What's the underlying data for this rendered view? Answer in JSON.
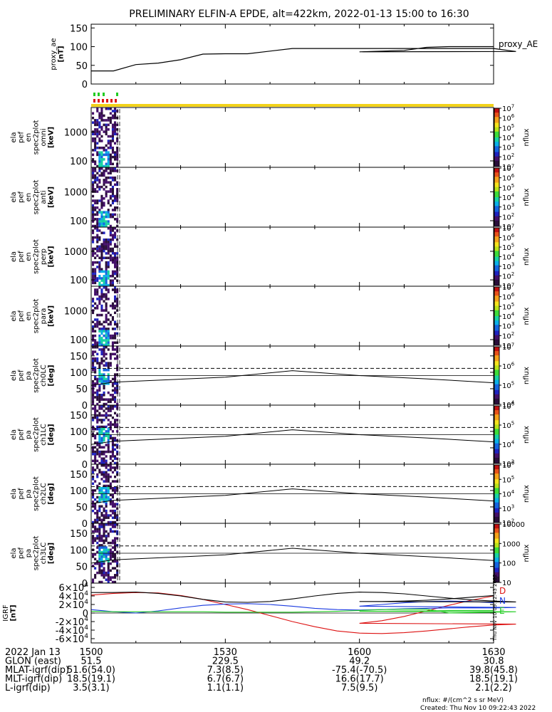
{
  "title": "PRELIMINARY ELFIN-A EPDE, alt=422km, 2022-01-13 15:00 to 16:30",
  "footer": {
    "units": "nflux: #/(cm^2 s sr MeV)",
    "created": "Created: Thu Nov 10 09:22:43 2022",
    "side_stamp": "Thu Nov 10 09:22:43 2022"
  },
  "colors": {
    "axis": "#000000",
    "bar_yellow": "#f2d21a",
    "marker_green": "#22cc22",
    "marker_red": "#dd1111",
    "grf_d": "#dd1111",
    "grf_n": "#1a3ae0",
    "grf_e": "#22cc22",
    "grf_total": "#000000"
  },
  "colormap": [
    "#ffffff",
    "#2b0f3b",
    "#45106a",
    "#1f23c0",
    "#1565e0",
    "#0ab0e6",
    "#17d3a2",
    "#3ddc3a",
    "#b8e31a",
    "#f5e31c",
    "#f5a21a",
    "#e8531a",
    "#c21010"
  ],
  "chart_data": [
    {
      "type": "line",
      "panel": "proxy_ae",
      "ylabel": [
        "proxy_ae",
        "[nT]"
      ],
      "legend": "proxy_AE",
      "ylim": [
        0,
        160
      ],
      "yticks": [
        "0",
        "50",
        "100",
        "150"
      ],
      "x": [
        1500,
        1505,
        1510,
        1515,
        1520,
        1525,
        1530,
        1535,
        1540,
        1545,
        1550,
        1555,
        1560,
        1565,
        1570,
        1575,
        1580,
        1585,
        1590,
        1595,
        1600,
        1605,
        1610,
        1615,
        1620,
        1625,
        1630
      ],
      "values": [
        35,
        35,
        52,
        56,
        65,
        80,
        81,
        81,
        88,
        95,
        95,
        95,
        95,
        95,
        95,
        95,
        95,
        95,
        95,
        87,
        86,
        88,
        90,
        98,
        100,
        100,
        100
      ]
    },
    {
      "type": "heatmap",
      "panel": "omni",
      "ylabel": [
        "ela",
        "pef",
        "en",
        "spec2plot",
        "omni",
        "[keV]"
      ],
      "yticks": [
        "100",
        "1000"
      ],
      "ylog": true,
      "ylim": [
        60,
        7000
      ],
      "colorbar_label": "nflux",
      "colorbar_ticks": [
        "10",
        "10^2",
        "10^3",
        "10^4",
        "10^5",
        "10^6",
        "10^7"
      ]
    },
    {
      "type": "heatmap",
      "panel": "anti",
      "ylabel": [
        "ela",
        "pef",
        "en",
        "spec2plot",
        "anti",
        "[keV]"
      ],
      "yticks": [
        "100",
        "1000"
      ],
      "ylog": true,
      "ylim": [
        60,
        7000
      ],
      "colorbar_label": "nflux",
      "colorbar_ticks": [
        "10",
        "10^2",
        "10^3",
        "10^4",
        "10^5",
        "10^6",
        "10^7"
      ]
    },
    {
      "type": "heatmap",
      "panel": "perp",
      "ylabel": [
        "ela",
        "pef",
        "en",
        "spec2plot",
        "perp",
        "[keV]"
      ],
      "yticks": [
        "100",
        "1000"
      ],
      "ylog": true,
      "ylim": [
        60,
        7000
      ],
      "colorbar_label": "nflux",
      "colorbar_ticks": [
        "10",
        "10^2",
        "10^3",
        "10^4",
        "10^5",
        "10^6",
        "10^7"
      ]
    },
    {
      "type": "heatmap",
      "panel": "para",
      "ylabel": [
        "ela",
        "pef",
        "en",
        "spec2plot",
        "para",
        "[keV]"
      ],
      "yticks": [
        "100",
        "1000"
      ],
      "ylog": true,
      "ylim": [
        60,
        7000
      ],
      "colorbar_label": "nflux",
      "colorbar_ticks": [
        "10",
        "10^2",
        "10^3",
        "10^4",
        "10^5",
        "10^6",
        "10^7"
      ]
    },
    {
      "type": "heatmap",
      "panel": "ch0LC",
      "ylabel": [
        "ela",
        "pef",
        "pa",
        "spec2plot",
        "ch0LC",
        "[deg]"
      ],
      "yticks": [
        "0",
        "50",
        "100",
        "150"
      ],
      "ylim": [
        0,
        180
      ],
      "colorbar_label": "nflux",
      "colorbar_ticks": [
        "10^4",
        "10^5",
        "10^6",
        "10^7"
      ]
    },
    {
      "type": "heatmap",
      "panel": "ch1LC",
      "ylabel": [
        "ela",
        "pef",
        "pa",
        "spec2plot",
        "ch1LC",
        "[deg]"
      ],
      "yticks": [
        "0",
        "50",
        "100",
        "150"
      ],
      "ylim": [
        0,
        180
      ],
      "colorbar_label": "nflux",
      "colorbar_ticks": [
        "10^3",
        "10^4",
        "10^5",
        "10^6"
      ]
    },
    {
      "type": "heatmap",
      "panel": "ch2LC",
      "ylabel": [
        "ela",
        "pef",
        "pa",
        "spec2plot",
        "ch2LC",
        "[deg]"
      ],
      "yticks": [
        "0",
        "50",
        "100",
        "150"
      ],
      "ylim": [
        0,
        180
      ],
      "colorbar_label": "nflux",
      "colorbar_ticks": [
        "10^2",
        "10^3",
        "10^4",
        "10^5",
        "10^6"
      ]
    },
    {
      "type": "heatmap",
      "panel": "ch3LC",
      "ylabel": [
        "ela",
        "pef",
        "pa",
        "spec2plot",
        "ch3LC",
        "[deg]"
      ],
      "yticks": [
        "0",
        "50",
        "100",
        "150"
      ],
      "ylim": [
        0,
        180
      ],
      "colorbar_label": "nflux",
      "colorbar_ticks": [
        "10",
        "100",
        "1000",
        "10000"
      ]
    },
    {
      "type": "line",
      "panel": "igrf",
      "ylabel": [
        "IGRF",
        "[nT]"
      ],
      "ylim": [
        -70000,
        70000
      ],
      "yticks": [
        "-6x10^4",
        "-4x10^4",
        "-2x10^4",
        "0",
        "2x10^4",
        "4x10^4",
        "6x10^4"
      ],
      "legend": [
        "D",
        "N",
        "E"
      ],
      "x": [
        1500,
        1505,
        1510,
        1515,
        1520,
        1525,
        1530,
        1535,
        1540,
        1545,
        1550,
        1555,
        1560,
        1565,
        1570,
        1575,
        1580,
        1585,
        1590,
        1595,
        1600,
        1605,
        1610,
        1615,
        1620,
        1625,
        1630
      ],
      "series": [
        {
          "name": "D",
          "values": [
            42000,
            46000,
            48000,
            47000,
            41000,
            32000,
            20000,
            8000,
            -6000,
            -20000,
            -32000,
            -42000,
            -47000,
            -48000,
            -46000,
            -42000,
            -37000,
            -32000,
            -28000,
            -26000,
            -24000,
            -18000,
            -8000,
            5000,
            18000,
            30000,
            40000
          ]
        },
        {
          "name": "N",
          "values": [
            8000,
            3000,
            0,
            5000,
            12000,
            18000,
            21000,
            22000,
            20000,
            16000,
            11000,
            8000,
            7000,
            8000,
            10000,
            11000,
            12000,
            12000,
            12000,
            13000,
            16000,
            20000,
            24000,
            27000,
            28000,
            27000,
            24000
          ]
        },
        {
          "name": "E",
          "values": [
            4000,
            3000,
            3000,
            3000,
            3000,
            3000,
            2000,
            2000,
            2000,
            2000,
            3000,
            4000,
            6000,
            8000,
            9000,
            9000,
            0,
            1000,
            2000,
            3000,
            4000,
            4000,
            5000,
            5000,
            6000,
            6000,
            6000
          ]
        },
        {
          "name": "total",
          "values": [
            48000,
            48000,
            49000,
            46000,
            40000,
            32000,
            26000,
            25000,
            27000,
            33000,
            40000,
            46000,
            49000,
            48000,
            45000,
            40000,
            35000,
            31000,
            28000,
            26000,
            27000,
            27000,
            28000,
            30000,
            33000,
            37000,
            41000
          ]
        }
      ]
    }
  ],
  "x_axis": {
    "ticks": [
      1500,
      1530,
      1600,
      1630
    ],
    "tick_labels": [
      "1500",
      "1530",
      "1600",
      "1630"
    ],
    "minor_step": 10,
    "rows": [
      {
        "label": "2022 Jan 13",
        "values": [
          "1500",
          "1530",
          "1600",
          "1630"
        ]
      },
      {
        "label": "GLON (east)",
        "values": [
          "51.5",
          "229.5",
          "49.2",
          "30.8"
        ]
      },
      {
        "label": "MLAT-igrf(dip)",
        "values": [
          "51.6(54.0)",
          "7.3(8.5)",
          "-75.4(-70.5)",
          "39.8(45.8)"
        ]
      },
      {
        "label": "MLT-igrf(dip)",
        "values": [
          "18.5(19.1)",
          "6.7(6.7)",
          "16.6(17.7)",
          "18.5(19.1)"
        ]
      },
      {
        "label": "L-igrf(dip)",
        "values": [
          "3.5(3.1)",
          "1.1(1.1)",
          "7.5(9.5)",
          "2.1(2.2)"
        ]
      }
    ]
  }
}
